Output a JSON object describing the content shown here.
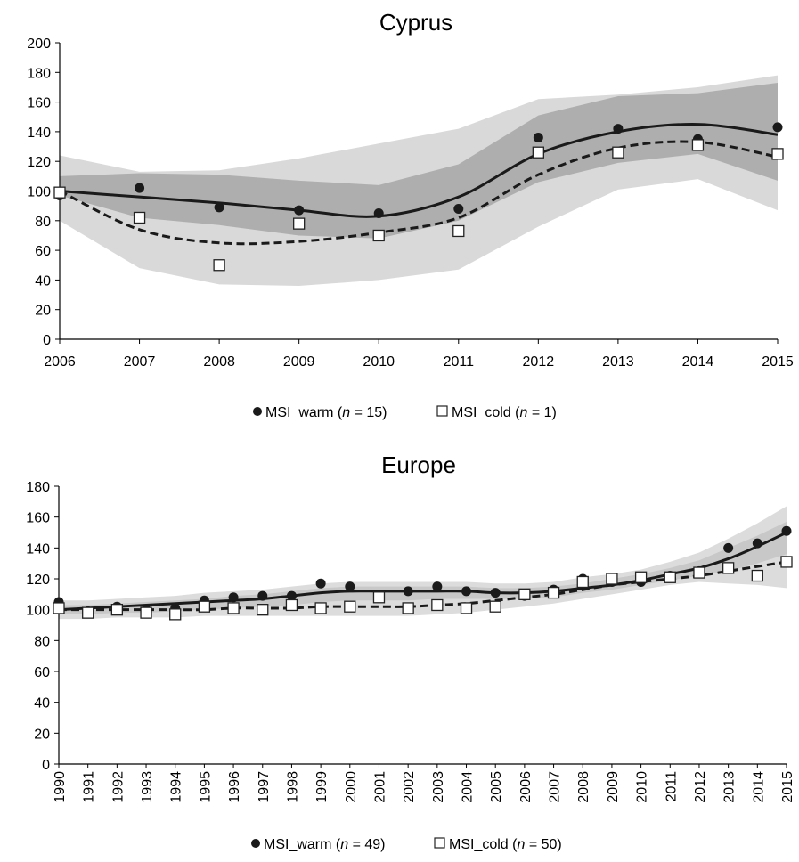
{
  "chart_data": [
    {
      "type": "line",
      "title": "Cyprus",
      "xlabel": "",
      "ylabel": "",
      "x": [
        2006,
        2007,
        2008,
        2009,
        2010,
        2011,
        2012,
        2013,
        2014,
        2015
      ],
      "xlim": [
        2006,
        2015
      ],
      "ylim": [
        0,
        200
      ],
      "yticks": [
        0,
        20,
        40,
        60,
        80,
        100,
        120,
        140,
        160,
        180,
        200
      ],
      "grid": false,
      "legend_position": "bottom",
      "legend": [
        {
          "marker": "filled-circle",
          "prefix": "MSI_warm (",
          "n": "n",
          "suffix": " = 15)"
        },
        {
          "marker": "open-square",
          "prefix": "MSI_cold (",
          "n": "n",
          "suffix": " = 1)"
        }
      ],
      "series": [
        {
          "key": "warm_points",
          "style": "filled-circle",
          "values": [
            97,
            102,
            89,
            87,
            85,
            88,
            136,
            142,
            135,
            143
          ]
        },
        {
          "key": "cold_points",
          "style": "open-square",
          "values": [
            99,
            82,
            50,
            78,
            70,
            73,
            126,
            126,
            131,
            125
          ]
        },
        {
          "key": "warm_trend",
          "style": "solid-line",
          "values": [
            100,
            96,
            92,
            87,
            83,
            96,
            125,
            140,
            145,
            138
          ]
        },
        {
          "key": "cold_trend",
          "style": "dashed-line",
          "values": [
            100,
            74,
            65,
            66,
            72,
            82,
            111,
            129,
            133,
            123
          ]
        }
      ],
      "bands": [
        {
          "key": "cold_ci",
          "color": "#d9d9d9",
          "upper": [
            124,
            113,
            114,
            122,
            132,
            142,
            162,
            165,
            170,
            178
          ],
          "lower": [
            80,
            48,
            37,
            36,
            40,
            47,
            76,
            101,
            108,
            87
          ]
        },
        {
          "key": "warm_ci",
          "color": "#aeaeae",
          "upper": [
            110,
            112,
            111,
            107,
            104,
            118,
            151,
            164,
            166,
            173
          ],
          "lower": [
            97,
            82,
            77,
            70,
            68,
            80,
            106,
            119,
            125,
            107
          ]
        }
      ]
    },
    {
      "type": "line",
      "title": "Europe",
      "xlabel": "",
      "ylabel": "",
      "x": [
        1990,
        1991,
        1992,
        1993,
        1994,
        1995,
        1996,
        1997,
        1998,
        1999,
        2000,
        2001,
        2002,
        2003,
        2004,
        2005,
        2006,
        2007,
        2008,
        2009,
        2010,
        2011,
        2012,
        2013,
        2014,
        2015
      ],
      "xlim": [
        1990,
        2015
      ],
      "ylim": [
        0,
        180
      ],
      "yticks": [
        0,
        20,
        40,
        60,
        80,
        100,
        120,
        140,
        160,
        180
      ],
      "grid": false,
      "legend_position": "bottom",
      "legend": [
        {
          "marker": "filled-circle",
          "prefix": "MSI_warm (",
          "n": "n",
          "suffix": " = 49)"
        },
        {
          "marker": "open-square",
          "prefix": "MSI_cold (",
          "n": "n",
          "suffix": " = 50)"
        }
      ],
      "series": [
        {
          "key": "warm_points",
          "style": "filled-circle",
          "values": [
            105,
            99,
            102,
            100,
            101,
            106,
            108,
            109,
            109,
            117,
            115,
            108,
            112,
            115,
            112,
            111,
            109,
            113,
            120,
            118,
            118,
            122,
            125,
            140,
            143,
            151
          ]
        },
        {
          "key": "cold_points",
          "style": "open-square",
          "values": [
            101,
            98,
            100,
            98,
            97,
            102,
            101,
            100,
            103,
            101,
            102,
            108,
            101,
            103,
            101,
            102,
            110,
            111,
            118,
            120,
            121,
            121,
            124,
            127,
            122,
            131
          ]
        },
        {
          "key": "warm_trend",
          "style": "solid-line",
          "values": [
            100,
            101,
            102,
            103,
            104,
            105,
            106,
            107,
            109,
            111,
            112,
            112,
            112,
            112,
            112,
            111,
            111,
            112,
            114,
            116,
            119,
            123,
            127,
            133,
            141,
            150
          ]
        },
        {
          "key": "cold_trend",
          "style": "dashed-line",
          "values": [
            100,
            100,
            100,
            100,
            100,
            100,
            101,
            101,
            101,
            102,
            102,
            102,
            102,
            103,
            104,
            106,
            108,
            110,
            113,
            116,
            118,
            120,
            122,
            125,
            128,
            131
          ]
        }
      ],
      "bands": [
        {
          "key": "outer_ci",
          "color": "#dcdcdc",
          "upper": [
            106,
            106,
            107,
            108,
            109,
            111,
            112,
            113,
            115,
            117,
            118,
            118,
            118,
            118,
            118,
            117,
            117,
            118,
            121,
            123,
            126,
            131,
            137,
            146,
            156,
            167
          ],
          "lower": [
            94,
            94,
            95,
            95,
            95,
            96,
            96,
            96,
            96,
            96,
            96,
            96,
            96,
            97,
            98,
            100,
            102,
            104,
            107,
            110,
            113,
            116,
            118,
            117,
            116,
            114
          ]
        },
        {
          "key": "inner_ci",
          "color": "#c8c8c8",
          "upper": [
            103,
            103,
            104,
            105,
            106,
            107,
            109,
            110,
            112,
            114,
            115,
            115,
            115,
            115,
            115,
            114,
            114,
            115,
            117,
            120,
            123,
            127,
            132,
            140,
            148,
            157
          ],
          "lower": [
            97,
            97,
            98,
            98,
            99,
            100,
            101,
            102,
            103,
            105,
            106,
            106,
            106,
            107,
            107,
            107,
            107,
            108,
            111,
            113,
            116,
            119,
            122,
            125,
            130,
            136
          ]
        }
      ]
    }
  ]
}
